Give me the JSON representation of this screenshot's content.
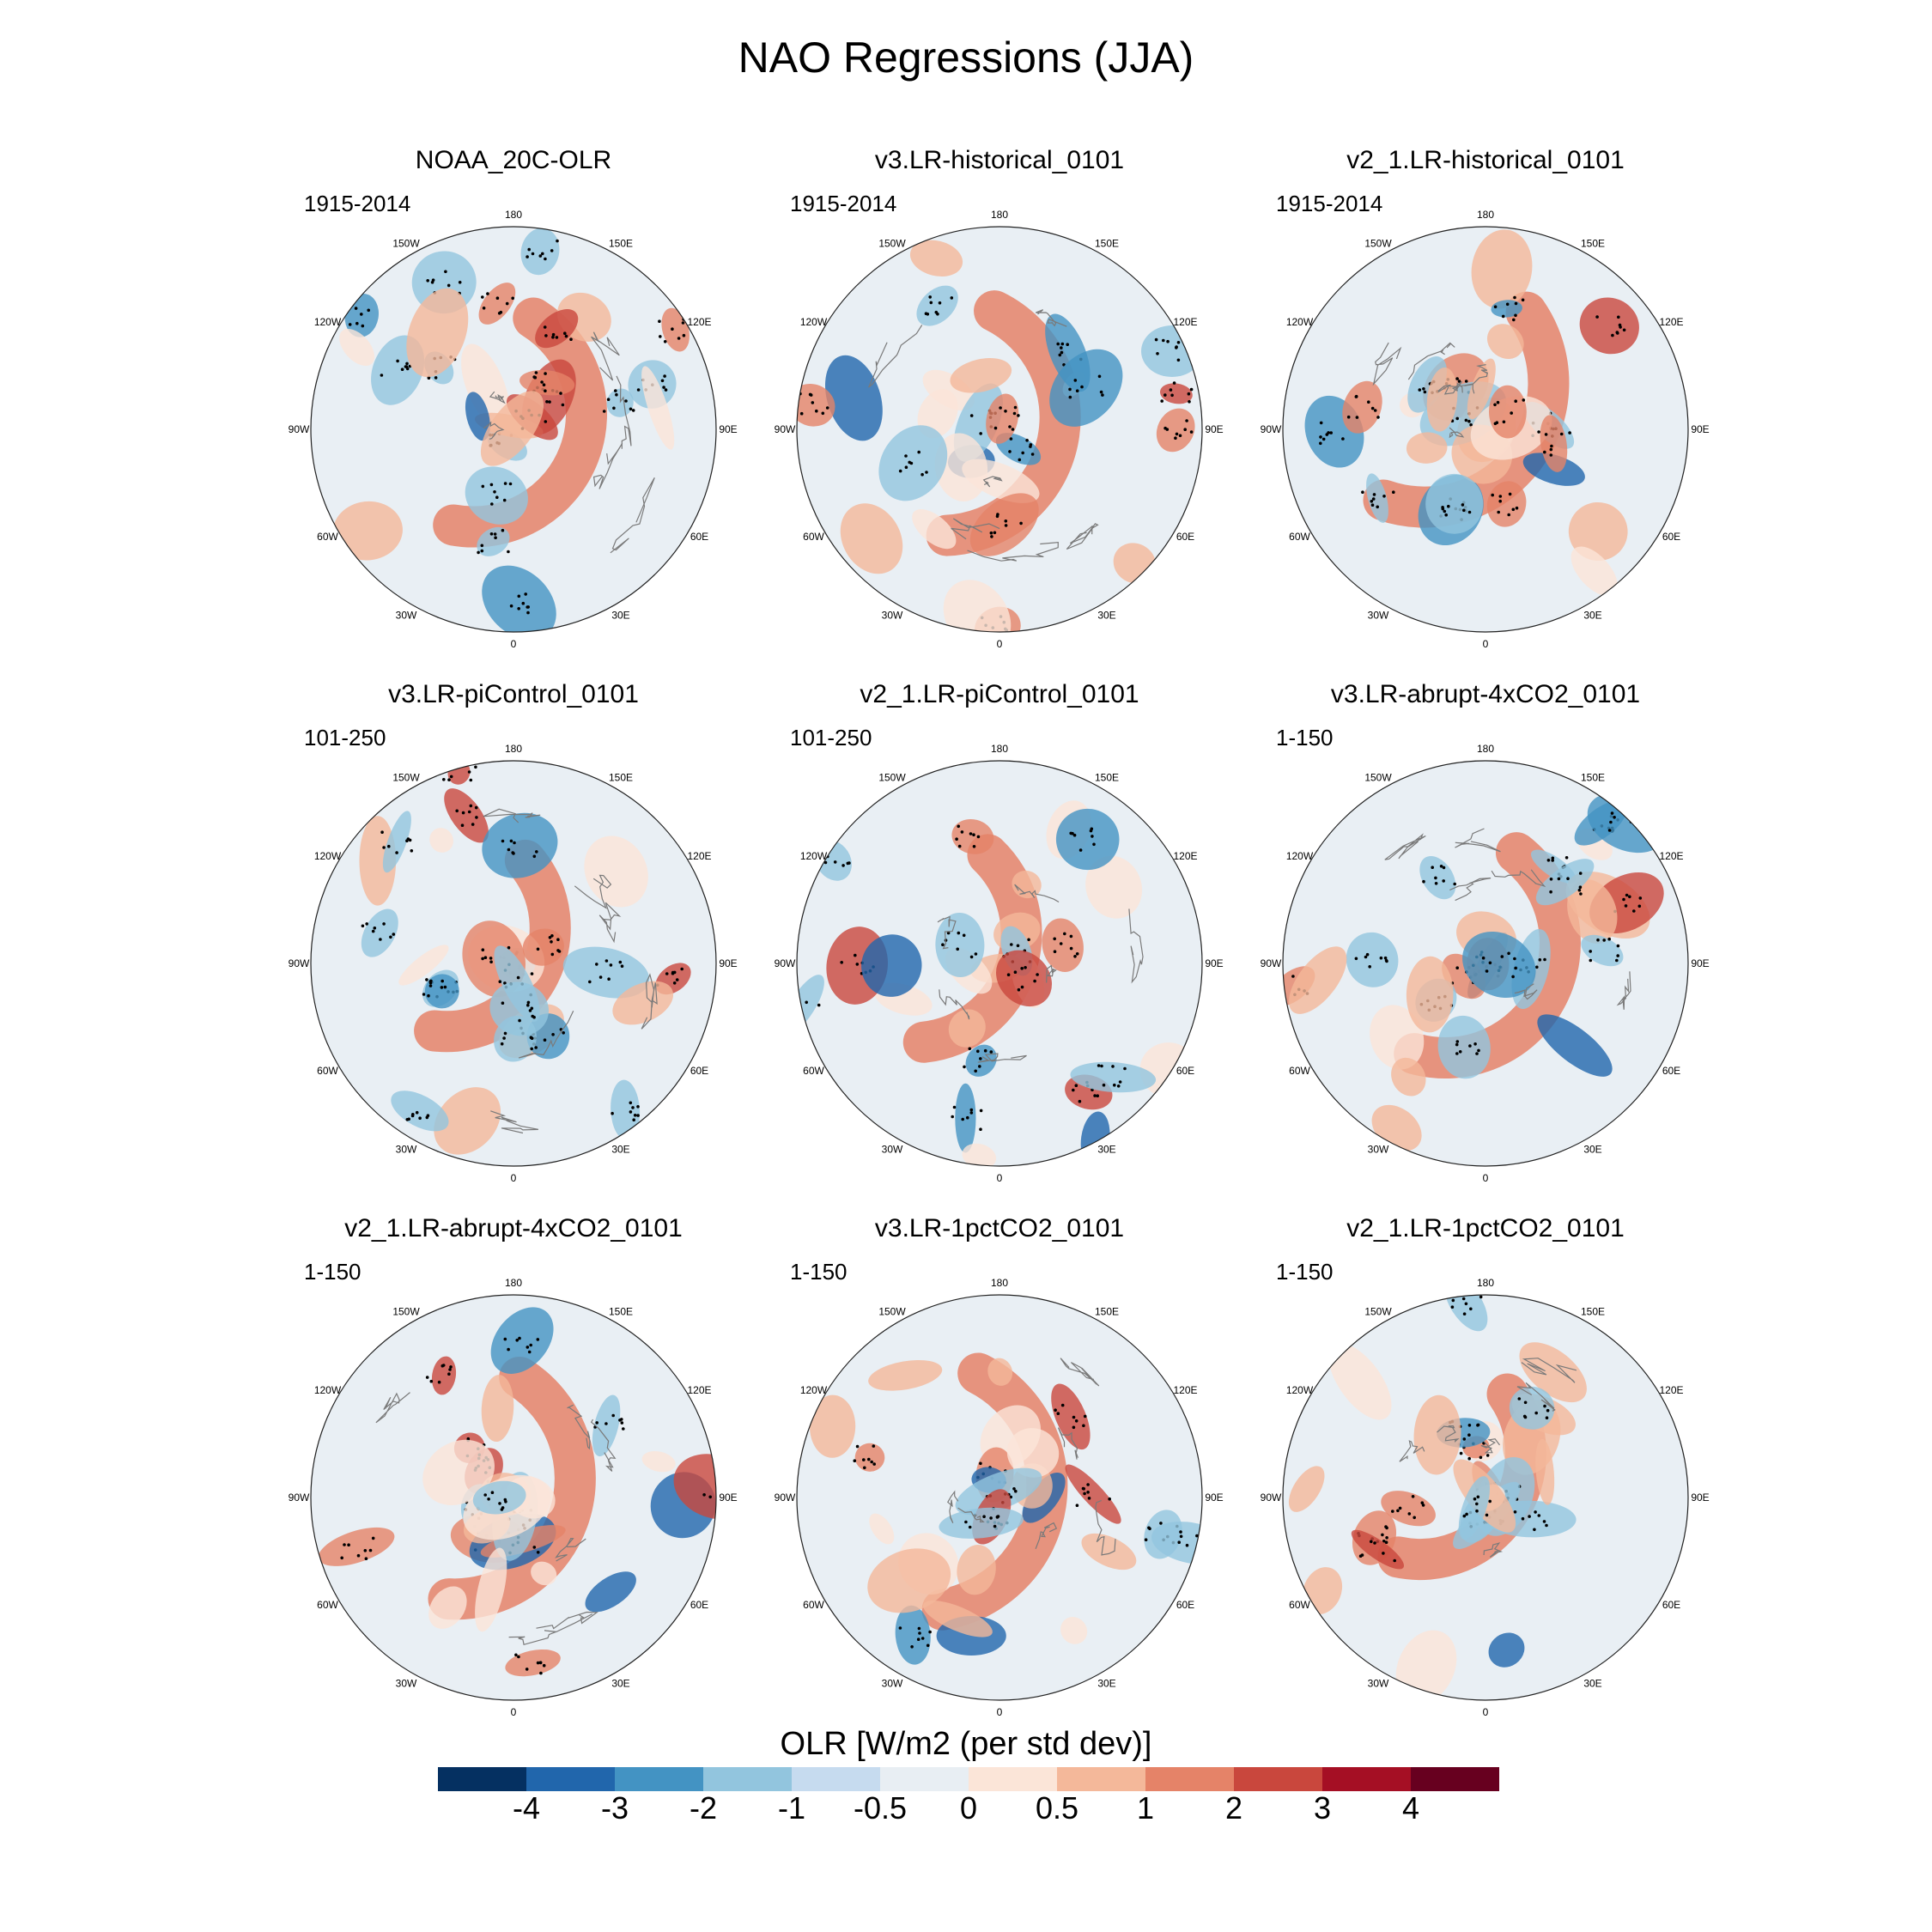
{
  "figure": {
    "title": "NAO Regressions (JJA)"
  },
  "panels": [
    {
      "title": "NOAA_20C-OLR",
      "period": "1915-2014"
    },
    {
      "title": "v3.LR-historical_0101",
      "period": "1915-2014"
    },
    {
      "title": "v2_1.LR-historical_0101",
      "period": "1915-2014"
    },
    {
      "title": "v3.LR-piControl_0101",
      "period": "101-250"
    },
    {
      "title": "v2_1.LR-piControl_0101",
      "period": "101-250"
    },
    {
      "title": "v3.LR-abrupt-4xCO2_0101",
      "period": "1-150"
    },
    {
      "title": "v2_1.LR-abrupt-4xCO2_0101",
      "period": "1-150"
    },
    {
      "title": "v3.LR-1pctCO2_0101",
      "period": "1-150"
    },
    {
      "title": "v2_1.LR-1pctCO2_0101",
      "period": "1-150"
    }
  ],
  "longitude_labels": [
    "180",
    "150E",
    "120E",
    "90E",
    "60E",
    "30E",
    "0",
    "30W",
    "60W",
    "90W",
    "120W",
    "150W"
  ],
  "colorbar": {
    "title": "OLR [W/m2 (per std dev)]",
    "levels": [
      "-4",
      "-3",
      "-2",
      "-1",
      "-0.5",
      "0",
      "0.5",
      "1",
      "2",
      "3",
      "4"
    ],
    "colors": [
      "#053061",
      "#2166ac",
      "#4393c3",
      "#92c5de",
      "#c6dbef",
      "#e8eef3",
      "#fbe5d8",
      "#f4b89a",
      "#e58368",
      "#c9473d",
      "#a50f24",
      "#67001f"
    ]
  }
}
